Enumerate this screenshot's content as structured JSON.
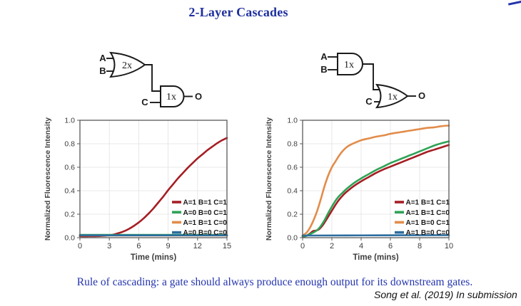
{
  "page": {
    "title": "2-Layer Cascades",
    "rule_text": "Rule of cascading: a gate should always produce enough output for its downstream gates.",
    "citation": "Song et al. (2019) In submission",
    "colors": {
      "title_blue": "#1e2f9e",
      "rule_blue": "#2334ae",
      "axis": "#595959",
      "grid": "#e2e2e2",
      "tick_text": "#3d3d3d",
      "legend_text": "#1a1a1a"
    }
  },
  "diagrams": [
    {
      "gate1_type": "OR",
      "gate1_label": "2x",
      "gate2_type": "AND",
      "gate2_label": "1x",
      "input_a": "A",
      "input_b": "B",
      "input_c": "C",
      "output": "O"
    },
    {
      "gate1_type": "AND",
      "gate1_label": "1x",
      "gate2_type": "OR",
      "gate2_label": "1x",
      "input_a": "A",
      "input_b": "B",
      "input_c": "C",
      "output": "O"
    }
  ],
  "chart_data": [
    {
      "type": "line",
      "title": "",
      "xlabel": "Time (mins)",
      "ylabel": "Normalized Fluorescence Intensity",
      "xlim": [
        0,
        15
      ],
      "ylim": [
        0,
        1
      ],
      "xticks": [
        0,
        3,
        6,
        9,
        12,
        15
      ],
      "yticks": [
        0.0,
        0.2,
        0.4,
        0.6,
        0.8,
        1.0
      ],
      "grid": true,
      "legend_position": "lower right",
      "series": [
        {
          "name": "A=1 B=1 C=1",
          "color": "#a51e24",
          "points": [
            [
              0,
              0.012
            ],
            [
              1,
              0.012
            ],
            [
              2,
              0.014
            ],
            [
              3,
              0.02
            ],
            [
              3.5,
              0.028
            ],
            [
              4,
              0.04
            ],
            [
              4.5,
              0.055
            ],
            [
              5,
              0.075
            ],
            [
              5.5,
              0.1
            ],
            [
              6,
              0.13
            ],
            [
              6.5,
              0.165
            ],
            [
              7,
              0.205
            ],
            [
              7.5,
              0.25
            ],
            [
              8,
              0.3
            ],
            [
              8.5,
              0.35
            ],
            [
              9,
              0.405
            ],
            [
              9.5,
              0.455
            ],
            [
              10,
              0.505
            ],
            [
              10.5,
              0.55
            ],
            [
              11,
              0.595
            ],
            [
              11.5,
              0.635
            ],
            [
              12,
              0.675
            ],
            [
              12.5,
              0.71
            ],
            [
              13,
              0.745
            ],
            [
              13.5,
              0.775
            ],
            [
              14,
              0.805
            ],
            [
              14.5,
              0.83
            ],
            [
              15,
              0.85
            ]
          ]
        },
        {
          "name": "A=0 B=0 C=1",
          "color": "#2fa356",
          "points": [
            [
              0,
              0.024
            ],
            [
              7.5,
              0.024
            ],
            [
              15,
              0.024
            ]
          ]
        },
        {
          "name": "A=1 B=1 C=0",
          "color": "#e28c4a",
          "points": [
            [
              0,
              0.018
            ],
            [
              7.5,
              0.018
            ],
            [
              15,
              0.018
            ]
          ]
        },
        {
          "name": "A=0 B=0 C=0",
          "color": "#2d6d9f",
          "points": [
            [
              0,
              0.02
            ],
            [
              7.5,
              0.02
            ],
            [
              15,
              0.02
            ]
          ]
        }
      ]
    },
    {
      "type": "line",
      "title": "",
      "xlabel": "Time (mins)",
      "ylabel": "Normalized Fluorescence Intensity",
      "xlim": [
        0,
        10
      ],
      "ylim": [
        0,
        1
      ],
      "xticks": [
        0,
        2,
        4,
        6,
        8,
        10
      ],
      "yticks": [
        0.0,
        0.2,
        0.4,
        0.6,
        0.8,
        1.0
      ],
      "grid": true,
      "legend_position": "lower right",
      "series": [
        {
          "name": "A=1 B=1 C=1",
          "color": "#a51e24",
          "points": [
            [
              0,
              0.01
            ],
            [
              0.25,
              0.015
            ],
            [
              0.5,
              0.035
            ],
            [
              0.7,
              0.055
            ],
            [
              0.9,
              0.06
            ],
            [
              1.1,
              0.07
            ],
            [
              1.3,
              0.095
            ],
            [
              1.5,
              0.13
            ],
            [
              1.75,
              0.18
            ],
            [
              2,
              0.23
            ],
            [
              2.25,
              0.28
            ],
            [
              2.5,
              0.325
            ],
            [
              2.75,
              0.36
            ],
            [
              3,
              0.39
            ],
            [
              3.5,
              0.44
            ],
            [
              4,
              0.48
            ],
            [
              4.5,
              0.515
            ],
            [
              5,
              0.55
            ],
            [
              5.5,
              0.58
            ],
            [
              6,
              0.605
            ],
            [
              6.5,
              0.63
            ],
            [
              7,
              0.655
            ],
            [
              7.5,
              0.68
            ],
            [
              8,
              0.705
            ],
            [
              8.5,
              0.73
            ],
            [
              9,
              0.75
            ],
            [
              9.5,
              0.77
            ],
            [
              10,
              0.79
            ]
          ]
        },
        {
          "name": "A=1 B=1 C=0",
          "color": "#2fa356",
          "points": [
            [
              0,
              0.01
            ],
            [
              0.25,
              0.015
            ],
            [
              0.5,
              0.03
            ],
            [
              0.75,
              0.045
            ],
            [
              1,
              0.065
            ],
            [
              1.25,
              0.1
            ],
            [
              1.5,
              0.15
            ],
            [
              1.75,
              0.21
            ],
            [
              2,
              0.265
            ],
            [
              2.25,
              0.315
            ],
            [
              2.5,
              0.355
            ],
            [
              2.75,
              0.385
            ],
            [
              3,
              0.415
            ],
            [
              3.5,
              0.465
            ],
            [
              4,
              0.505
            ],
            [
              4.5,
              0.54
            ],
            [
              5,
              0.575
            ],
            [
              5.5,
              0.605
            ],
            [
              6,
              0.635
            ],
            [
              6.5,
              0.66
            ],
            [
              7,
              0.685
            ],
            [
              7.5,
              0.71
            ],
            [
              8,
              0.735
            ],
            [
              8.5,
              0.76
            ],
            [
              9,
              0.785
            ],
            [
              9.5,
              0.805
            ],
            [
              10,
              0.82
            ]
          ]
        },
        {
          "name": "A=1 B=0 C=1",
          "color": "#e28c4a",
          "points": [
            [
              0,
              0.02
            ],
            [
              0.25,
              0.04
            ],
            [
              0.5,
              0.085
            ],
            [
              0.75,
              0.15
            ],
            [
              1,
              0.23
            ],
            [
              1.25,
              0.33
            ],
            [
              1.5,
              0.44
            ],
            [
              1.75,
              0.53
            ],
            [
              2,
              0.6
            ],
            [
              2.25,
              0.65
            ],
            [
              2.5,
              0.7
            ],
            [
              2.75,
              0.74
            ],
            [
              3,
              0.77
            ],
            [
              3.25,
              0.79
            ],
            [
              3.5,
              0.805
            ],
            [
              4,
              0.83
            ],
            [
              4.5,
              0.845
            ],
            [
              5,
              0.86
            ],
            [
              5.5,
              0.87
            ],
            [
              6,
              0.885
            ],
            [
              6.5,
              0.895
            ],
            [
              7,
              0.905
            ],
            [
              7.5,
              0.915
            ],
            [
              8,
              0.925
            ],
            [
              8.5,
              0.935
            ],
            [
              9,
              0.94
            ],
            [
              9.5,
              0.95
            ],
            [
              10,
              0.955
            ]
          ]
        },
        {
          "name": "A=1 B=0 C=0",
          "color": "#2d6d9f",
          "points": [
            [
              0,
              0.018
            ],
            [
              5,
              0.02
            ],
            [
              10,
              0.022
            ]
          ]
        }
      ]
    }
  ]
}
